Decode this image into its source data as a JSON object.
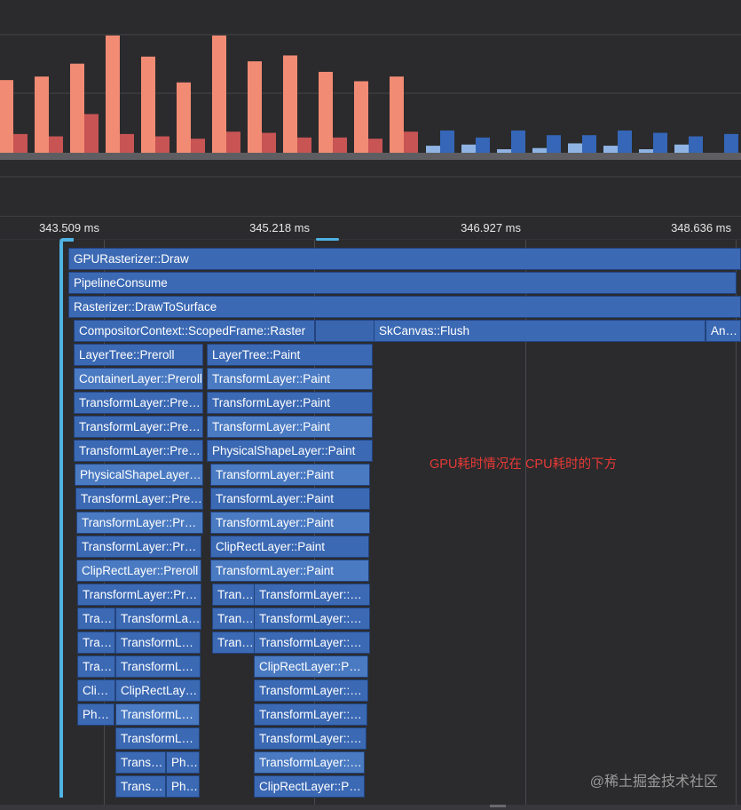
{
  "colors": {
    "cpu_bar_primary": "#f28b74",
    "cpu_bar_secondary": "#c85454",
    "gpu_bar_primary": "#3566b8",
    "gpu_bar_secondary": "#8fb4e3",
    "flame_bar": "#3b69b4",
    "selection_bracket": "#4fb3e3",
    "annotation": "#e53935"
  },
  "chart_data": {
    "type": "bar",
    "title": "",
    "xlabel": "",
    "ylabel": "",
    "ylim": [
      0,
      1
    ],
    "grid": true,
    "categories": [
      "1",
      "2",
      "3",
      "4",
      "5",
      "6",
      "7",
      "8",
      "9",
      "10",
      "11",
      "12",
      "13",
      "14",
      "15",
      "16",
      "17",
      "18",
      "19",
      "20",
      "21"
    ],
    "series": [
      {
        "values": [
          0.62,
          0.65,
          0.76,
          1.0,
          0.82,
          0.6,
          1.0,
          0.78,
          0.83,
          0.69,
          0.61,
          0.65,
          0.06,
          0.07,
          0.03,
          0.04,
          0.08,
          0.06,
          0.03,
          0.07,
          0.0
        ]
      },
      {
        "values": [
          0.16,
          0.14,
          0.33,
          0.16,
          0.14,
          0.12,
          0.18,
          0.17,
          0.13,
          0.13,
          0.12,
          0.18,
          0.19,
          0.13,
          0.19,
          0.15,
          0.15,
          0.19,
          0.17,
          0.14,
          0.16
        ]
      }
    ]
  },
  "ruler": {
    "ticks": [
      "343.509 ms",
      "345.218 ms",
      "346.927 ms",
      "348.636 ms"
    ]
  },
  "flame": {
    "rows": [
      [
        "GPURasterizer::Draw"
      ],
      [
        "PipelineConsume"
      ],
      [
        "Rasterizer::DrawToSurface"
      ],
      [
        "CompositorContext::ScopedFrame::Raster",
        "SkCanvas::Flush",
        "Andro"
      ],
      [
        "LayerTree::Preroll",
        "LayerTree::Paint"
      ],
      [
        "ContainerLayer::Preroll",
        "TransformLayer::Paint"
      ],
      [
        "TransformLayer::Preroll",
        "TransformLayer::Paint"
      ],
      [
        "TransformLayer::Preroll",
        "TransformLayer::Paint"
      ],
      [
        "TransformLayer::Preroll",
        "PhysicalShapeLayer::Paint"
      ],
      [
        "PhysicalShapeLayer::Preroll",
        "TransformLayer::Paint"
      ],
      [
        "TransformLayer::Preroll",
        "TransformLayer::Paint"
      ],
      [
        "TransformLayer::Preroll",
        "TransformLayer::Paint"
      ],
      [
        "TransformLayer::Preroll",
        "ClipRectLayer::Paint"
      ],
      [
        "ClipRectLayer::Preroll",
        "TransformLayer::Paint"
      ],
      [
        "TransformLayer::Preroll",
        "TransformLayer::Paint",
        "TransformLayer::Paint"
      ],
      [
        "TransformLayer::Preroll",
        "TransformLayer::Preroll",
        "TransformLayer::Paint",
        "TransformLayer::Paint"
      ],
      [
        "TransformLayer::Preroll",
        "TransformLayer::Preroll",
        "TransformLayer::Paint",
        "TransformLayer::Paint"
      ],
      [
        "TransformLayer::Preroll",
        "TransformLayer::Preroll",
        "ClipRectLayer::Paint"
      ],
      [
        "ClipRectLayer::Preroll",
        "ClipRectLayer::Preroll",
        "TransformLayer::Paint"
      ],
      [
        "PhysicalShapeLayer::Preroll",
        "TransformLayer::Preroll",
        "TransformLayer::Paint"
      ],
      [
        "TransformLayer::Preroll",
        "TransformLayer::Paint"
      ],
      [
        "TransformLayer::Preroll",
        "PhysicalShapeLayer::Preroll",
        "TransformLayer::Paint"
      ],
      [
        "TransformLayer::Preroll",
        "PhysicalShapeLayer::Preroll",
        "ClipRectLayer::Paint"
      ]
    ]
  },
  "annotation": "GPU耗时情况在 CPU耗时的下方",
  "watermark": "@稀土掘金技术社区"
}
